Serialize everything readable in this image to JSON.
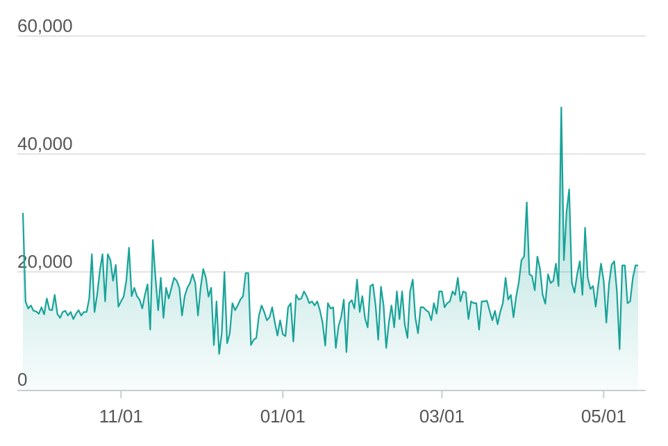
{
  "chart_data": {
    "type": "area",
    "categories": [
      null,
      null,
      null,
      null,
      null,
      null,
      null,
      null,
      null,
      null,
      null,
      null,
      null,
      null,
      null,
      null,
      null,
      null,
      null,
      null,
      null,
      null,
      null,
      null,
      null,
      null,
      null,
      null,
      null,
      null,
      null,
      null,
      null,
      null,
      null,
      null,
      null,
      "11/01",
      null,
      null,
      null,
      null,
      null,
      null,
      null,
      null,
      null,
      null,
      null,
      null,
      null,
      null,
      null,
      null,
      null,
      null,
      null,
      null,
      null,
      null,
      null,
      null,
      null,
      null,
      null,
      null,
      null,
      null,
      null,
      null,
      null,
      null,
      null,
      null,
      null,
      null,
      null,
      null,
      null,
      null,
      null,
      null,
      null,
      null,
      null,
      null,
      null,
      null,
      null,
      null,
      null,
      null,
      null,
      null,
      null,
      null,
      null,
      null,
      "01/01",
      null,
      null,
      null,
      null,
      null,
      null,
      null,
      null,
      null,
      null,
      null,
      null,
      null,
      null,
      null,
      null,
      null,
      null,
      null,
      null,
      null,
      null,
      null,
      null,
      null,
      null,
      null,
      null,
      null,
      null,
      null,
      null,
      null,
      null,
      null,
      null,
      null,
      null,
      null,
      null,
      null,
      null,
      null,
      null,
      null,
      null,
      null,
      null,
      null,
      null,
      null,
      null,
      null,
      null,
      null,
      null,
      null,
      null,
      null,
      "03/01",
      null,
      null,
      null,
      null,
      null,
      null,
      null,
      null,
      null,
      null,
      null,
      null,
      null,
      null,
      null,
      null,
      null,
      null,
      null,
      null,
      null,
      null,
      null,
      null,
      null,
      null,
      null,
      null,
      null,
      null,
      null,
      null,
      null,
      null,
      null,
      null,
      null,
      null,
      null,
      null,
      null,
      null,
      null,
      null,
      null,
      null,
      null,
      null,
      null,
      null,
      null,
      null,
      null,
      null,
      null,
      null,
      null,
      null,
      null,
      null,
      "05/01",
      null,
      null,
      null,
      null,
      null,
      null,
      null,
      null,
      null,
      null,
      null,
      null,
      null
    ],
    "values": [
      30000,
      15000,
      13800,
      14300,
      13400,
      13300,
      12900,
      14000,
      12800,
      15500,
      13600,
      13500,
      16100,
      12900,
      12200,
      13200,
      13400,
      12600,
      13200,
      12000,
      12900,
      13500,
      12600,
      13200,
      13200,
      15500,
      23000,
      13200,
      16100,
      20200,
      23000,
      15000,
      23000,
      22000,
      18500,
      21200,
      14100,
      15000,
      15800,
      18500,
      24100,
      15900,
      17300,
      15900,
      15300,
      13800,
      16100,
      17900,
      10200,
      25400,
      19000,
      13500,
      19000,
      12200,
      17300,
      15500,
      17300,
      19000,
      18500,
      17300,
      12600,
      15900,
      17300,
      18100,
      19600,
      18100,
      12600,
      17300,
      20500,
      19000,
      15800,
      17300,
      7600,
      15000,
      6100,
      9600,
      20000,
      7900,
      9600,
      14700,
      13500,
      14300,
      15300,
      15900,
      19800,
      19800,
      7600,
      8500,
      8800,
      12600,
      14300,
      13200,
      11800,
      12300,
      14000,
      11400,
      9200,
      11800,
      9400,
      9100,
      14000,
      14700,
      8200,
      16100,
      15300,
      15500,
      16700,
      15900,
      14700,
      15000,
      14300,
      15000,
      13500,
      11400,
      7500,
      14700,
      13800,
      14000,
      7100,
      10800,
      12300,
      15300,
      6400,
      14700,
      15200,
      13800,
      18700,
      13200,
      15900,
      12200,
      10600,
      17600,
      17900,
      14300,
      8500,
      17500,
      14300,
      7100,
      11400,
      14300,
      10600,
      16700,
      12000,
      16700,
      11100,
      8800,
      16700,
      18700,
      12200,
      9600,
      14000,
      14000,
      13500,
      13200,
      11800,
      14700,
      12900,
      16700,
      16700,
      14000,
      14700,
      15000,
      16700,
      16100,
      19000,
      15000,
      16700,
      16500,
      12000,
      15000,
      14700,
      14700,
      10200,
      15000,
      15000,
      15100,
      13400,
      11800,
      13400,
      11100,
      13200,
      14700,
      19000,
      15300,
      16100,
      12300,
      15800,
      18200,
      22000,
      22600,
      31800,
      19600,
      19300,
      16900,
      22600,
      20500,
      16100,
      14600,
      19600,
      18100,
      18500,
      21400,
      17600,
      47900,
      22000,
      30200,
      34000,
      18200,
      16500,
      19600,
      21800,
      16100,
      27500,
      19000,
      17100,
      17600,
      14100,
      17900,
      21400,
      18500,
      11400,
      17900,
      21200,
      21800,
      16700,
      6900,
      21100,
      21100,
      14700,
      15000,
      19000,
      21100,
      21100
    ],
    "color": "#17a398",
    "ylim": [
      0,
      60000
    ],
    "yticks": [
      0,
      {
        "value": 20000,
        "label": "20,000"
      },
      {
        "value": 40000,
        "label": "40,000"
      },
      {
        "value": 60000,
        "label": "60,000"
      }
    ],
    "grid": true
  }
}
